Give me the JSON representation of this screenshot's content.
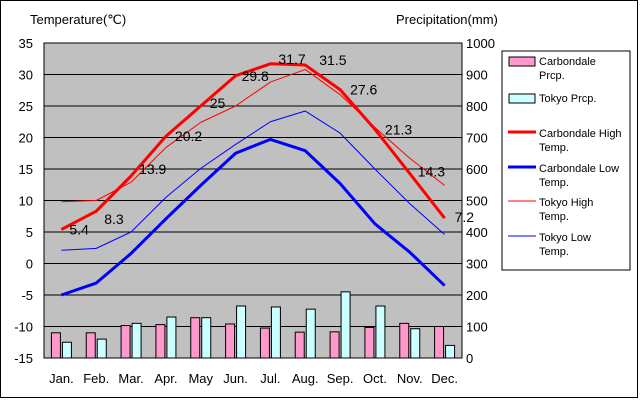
{
  "chart_data": {
    "type": "bar+line",
    "left_axis_title": "Temperature(℃)",
    "right_axis_title": "Precipitation(mm)",
    "categories": [
      "Jan.",
      "Feb.",
      "Mar.",
      "Apr.",
      "May",
      "Jun.",
      "Jul.",
      "Aug.",
      "Sep.",
      "Oct.",
      "Nov.",
      "Dec."
    ],
    "temp_ylim": [
      -15,
      35
    ],
    "temp_ticks": [
      "35",
      "30",
      "25",
      "20",
      "15",
      "10",
      "5",
      "0",
      "-5",
      "-10",
      "-15"
    ],
    "precip_ylim": [
      0,
      1000
    ],
    "precip_ticks": [
      "1000",
      "900",
      "800",
      "700",
      "600",
      "500",
      "400",
      "300",
      "200",
      "100",
      "0"
    ],
    "bar_series": [
      {
        "name": "Carbondale Prcp.",
        "color": "#ff99cc",
        "values": [
          80,
          80,
          103,
          106,
          128,
          108,
          95,
          82,
          83,
          97,
          110,
          100
        ]
      },
      {
        "name": "Tokyo Prcp.",
        "color": "#ccffff",
        "values": [
          50,
          60,
          110,
          130,
          128,
          165,
          162,
          155,
          210,
          165,
          93,
          40
        ]
      }
    ],
    "line_series": [
      {
        "name": "Carbondale High Temp.",
        "color": "#ff0000",
        "width": 3,
        "values": [
          5.4,
          8.3,
          13.9,
          20.2,
          25.0,
          29.8,
          31.7,
          31.5,
          27.6,
          21.3,
          14.3,
          7.2
        ],
        "labels": [
          "5.4",
          "8.3",
          "13.9",
          "20.2",
          "25",
          "29.8",
          "31.7",
          "31.5",
          "27.6",
          "21.3",
          "14.3",
          "7.2"
        ]
      },
      {
        "name": "Carbondale Low Temp.",
        "color": "#0000ff",
        "width": 3,
        "values": [
          -5.0,
          -3.1,
          1.6,
          7.1,
          12.4,
          17.5,
          19.7,
          17.9,
          12.7,
          6.3,
          1.8,
          -3.5
        ]
      },
      {
        "name": "Tokyo High Temp.",
        "color": "#ff0000",
        "width": 1,
        "values": [
          9.8,
          10.0,
          12.9,
          18.4,
          22.4,
          25.0,
          28.8,
          30.8,
          26.8,
          21.6,
          16.7,
          12.4
        ]
      },
      {
        "name": "Tokyo Low Temp.",
        "color": "#0000ff",
        "width": 1,
        "values": [
          2.1,
          2.4,
          5.0,
          10.5,
          15.1,
          18.9,
          22.5,
          24.2,
          20.7,
          15.0,
          9.5,
          4.6
        ]
      }
    ]
  }
}
